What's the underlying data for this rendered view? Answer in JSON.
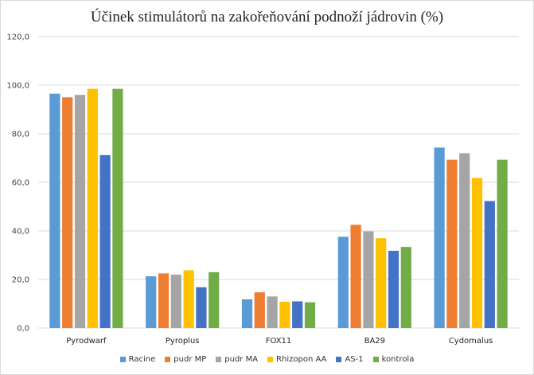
{
  "chart_data": {
    "type": "bar",
    "title": "Účinek stimulátorů na zakořeňování podnoží jádrovin (%)",
    "xlabel": "",
    "ylabel": "",
    "ylim": [
      0,
      120
    ],
    "yticks": [
      "0,0",
      "20,0",
      "40,0",
      "60,0",
      "80,0",
      "100,0",
      "120,0"
    ],
    "grid": true,
    "legend_position": "bottom",
    "categories": [
      "Pyrodwarf",
      "Pyroplus",
      "FOX11",
      "BA29",
      "Cydomalus"
    ],
    "series": [
      {
        "name": "Racine",
        "color": "#5b9bd5",
        "values": [
          96.5,
          21.3,
          11.8,
          37.6,
          74.3
        ]
      },
      {
        "name": "pudr MP",
        "color": "#ed7d31",
        "values": [
          95.0,
          22.5,
          14.7,
          42.5,
          69.3
        ]
      },
      {
        "name": "pudr MA",
        "color": "#a5a5a5",
        "values": [
          96.0,
          22.0,
          13.0,
          39.8,
          72.0
        ]
      },
      {
        "name": "Rhizopon AA",
        "color": "#ffc000",
        "values": [
          98.5,
          23.8,
          10.8,
          37.0,
          61.8
        ]
      },
      {
        "name": "AS-1",
        "color": "#4472c4",
        "values": [
          71.2,
          16.8,
          11.0,
          31.8,
          52.3
        ]
      },
      {
        "name": "kontrola",
        "color": "#70ad47",
        "values": [
          98.5,
          23.0,
          10.6,
          33.4,
          69.3
        ]
      }
    ]
  }
}
